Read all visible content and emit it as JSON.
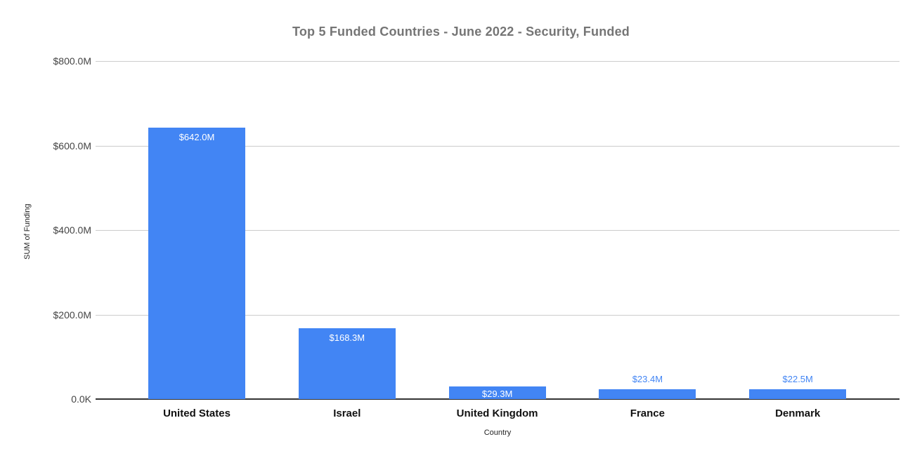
{
  "chart_data": {
    "type": "bar",
    "title": "Top 5 Funded Countries - June 2022 - Security, Funded",
    "xlabel": "Country",
    "ylabel": "SUM of Funding",
    "categories": [
      "United States",
      "Israel",
      "United Kingdom",
      "France",
      "Denmark"
    ],
    "values": [
      642.0,
      168.3,
      29.3,
      23.4,
      22.5
    ],
    "value_labels": [
      "$642.0M",
      "$168.3M",
      "$29.3M",
      "$23.4M",
      "$22.5M"
    ],
    "ylim": [
      0,
      800
    ],
    "yticks": [
      0,
      200,
      400,
      600,
      800
    ],
    "ytick_labels": [
      "0.0K",
      "$200.0M",
      "$400.0M",
      "$600.0M",
      "$800.0M"
    ],
    "grid": true,
    "legend": "none"
  },
  "colors": {
    "bar": "#4285f4",
    "title": "#757575",
    "gridline": "#cccccc",
    "baseline": "#333333",
    "y_tick_label": "#444444",
    "category_label": "#111111",
    "axis_title": "#222222",
    "value_label_inside": "#ffffff",
    "value_label_outside": "#4285f4",
    "background": "#ffffff"
  }
}
